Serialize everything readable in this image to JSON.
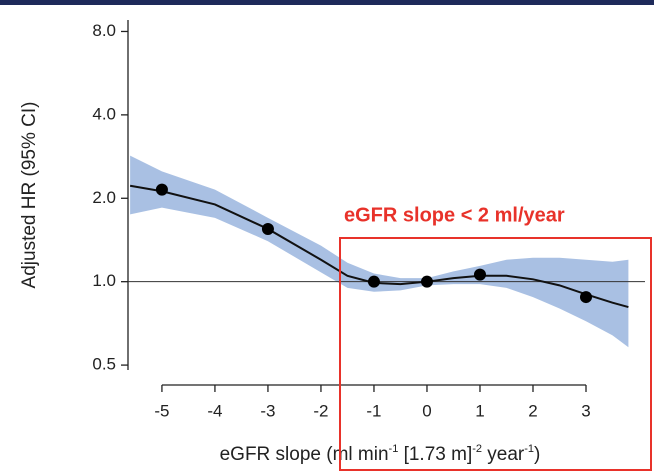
{
  "chart_data": {
    "type": "line",
    "y_label": "Adjusted HR (95% CI)",
    "x_label_parts": [
      "eGFR slope (ml min",
      "-1",
      " [1.73 m]",
      "-2",
      " year",
      "-1",
      ")"
    ],
    "annotation": "eGFR slope < 2 ml/year",
    "y_scale": "log",
    "xlim": [
      -5.64,
      3.83
    ],
    "ylim": [
      0.48,
      8.8
    ],
    "xticks": [
      -5,
      -4,
      -3,
      -2,
      -1,
      0,
      1,
      2,
      3
    ],
    "yticks": [
      0.5,
      {
        "value": 1,
        "label": "1.0"
      },
      {
        "value": 2,
        "label": "2.0"
      },
      {
        "value": 4,
        "label": "4.0"
      },
      {
        "value": 8,
        "label": "8.0"
      }
    ],
    "reference_line": 1,
    "curve": {
      "x": [
        -5.6,
        -5,
        -4,
        -3,
        -2,
        -1.5,
        -1,
        -0.5,
        0,
        0.5,
        1,
        1.5,
        2,
        2.5,
        3,
        3.5,
        3.8
      ],
      "values": [
        2.22,
        2.12,
        1.9,
        1.55,
        1.2,
        1.05,
        0.99,
        0.98,
        1.0,
        1.03,
        1.05,
        1.05,
        1.02,
        0.97,
        0.9,
        0.84,
        0.81
      ],
      "lower": [
        1.75,
        1.85,
        1.7,
        1.4,
        1.08,
        0.95,
        0.92,
        0.93,
        0.97,
        0.98,
        0.98,
        0.95,
        0.88,
        0.8,
        0.72,
        0.64,
        0.58
      ],
      "upper": [
        2.85,
        2.5,
        2.15,
        1.7,
        1.35,
        1.17,
        1.07,
        1.03,
        1.03,
        1.09,
        1.14,
        1.2,
        1.22,
        1.22,
        1.2,
        1.18,
        1.2
      ],
      "color": "#111111",
      "band_color": "#a9c0e3"
    },
    "points": {
      "x": [
        -5,
        -3,
        -1,
        0,
        1,
        3
      ],
      "values": [
        2.15,
        1.55,
        1.0,
        1.0,
        1.06,
        0.88
      ],
      "color": "#000000"
    },
    "annotation_color": "#e8322a"
  }
}
